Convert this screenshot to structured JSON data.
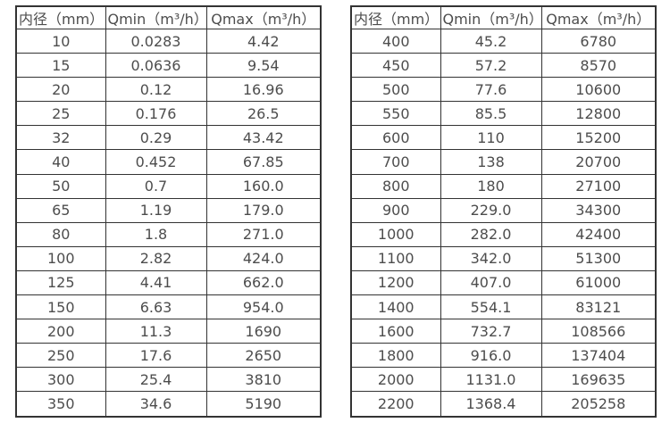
{
  "colors": {
    "background": "#ffffff",
    "border": "#333333",
    "text": "#4d4d4d"
  },
  "tables": [
    {
      "name": "flow-table-small-diameters",
      "headers": [
        "内径（mm）",
        "Qmin（m³/h）",
        "Qmax（m³/h）"
      ],
      "rows": [
        [
          "10",
          "0.0283",
          "4.42"
        ],
        [
          "15",
          "0.0636",
          "9.54"
        ],
        [
          "20",
          "0.12",
          "16.96"
        ],
        [
          "25",
          "0.176",
          "26.5"
        ],
        [
          "32",
          "0.29",
          "43.42"
        ],
        [
          "40",
          "0.452",
          "67.85"
        ],
        [
          "50",
          "0.7",
          "160.0"
        ],
        [
          "65",
          "1.19",
          "179.0"
        ],
        [
          "80",
          "1.8",
          "271.0"
        ],
        [
          "100",
          "2.82",
          "424.0"
        ],
        [
          "125",
          "4.41",
          "662.0"
        ],
        [
          "150",
          "6.63",
          "954.0"
        ],
        [
          "200",
          "11.3",
          "1690"
        ],
        [
          "250",
          "17.6",
          "2650"
        ],
        [
          "300",
          "25.4",
          "3810"
        ],
        [
          "350",
          "34.6",
          "5190"
        ]
      ]
    },
    {
      "name": "flow-table-large-diameters",
      "headers": [
        "内径（mm）",
        "Qmin（m³/h）",
        "Qmax（m³/h）"
      ],
      "rows": [
        [
          "400",
          "45.2",
          "6780"
        ],
        [
          "450",
          "57.2",
          "8570"
        ],
        [
          "500",
          "77.6",
          "10600"
        ],
        [
          "550",
          "85.5",
          "12800"
        ],
        [
          "600",
          "110",
          "15200"
        ],
        [
          "700",
          "138",
          "20700"
        ],
        [
          "800",
          "180",
          "27100"
        ],
        [
          "900",
          "229.0",
          "34300"
        ],
        [
          "1000",
          "282.0",
          "42400"
        ],
        [
          "1100",
          "342.0",
          "51300"
        ],
        [
          "1200",
          "407.0",
          "61000"
        ],
        [
          "1400",
          "554.1",
          "83121"
        ],
        [
          "1600",
          "732.7",
          "108566"
        ],
        [
          "1800",
          "916.0",
          "137404"
        ],
        [
          "2000",
          "1131.0",
          "169635"
        ],
        [
          "2200",
          "1368.4",
          "205258"
        ]
      ]
    }
  ]
}
